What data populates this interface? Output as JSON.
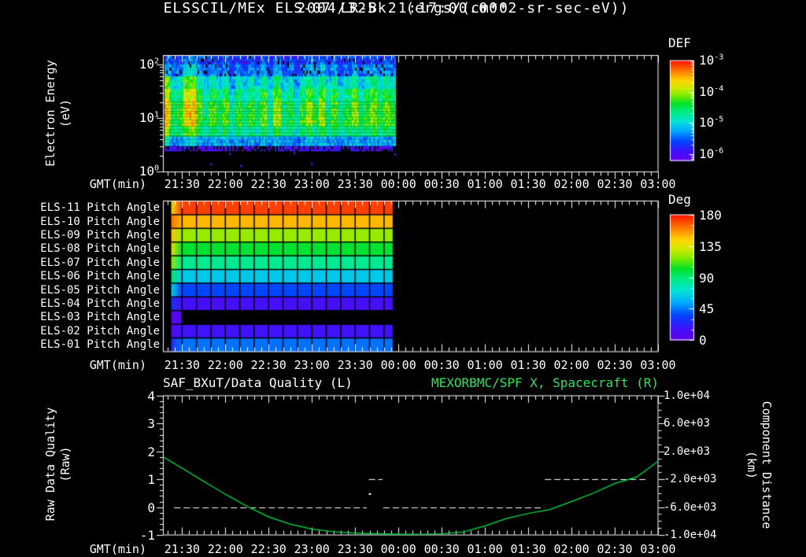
{
  "titles": {
    "line1": "2004/325 21:17:00.000",
    "line2": "ELSSCIL/MEx ELS-07 LR-Bk  (ergs/(cm**2-sr-sec-eV))"
  },
  "colors": {
    "bg": "#000000",
    "fg": "#ffffff",
    "green_text": "#2ee25a",
    "curve": "#00c840",
    "quality_line": "#ffffff"
  },
  "time_axis": {
    "label": "GMT(min)",
    "start_min": 17,
    "end_min": 360,
    "minor_step_min": 5,
    "major_ticks": [
      {
        "label": "21:30",
        "min": 30
      },
      {
        "label": "22:00",
        "min": 60
      },
      {
        "label": "22:30",
        "min": 90
      },
      {
        "label": "23:00",
        "min": 120
      },
      {
        "label": "23:30",
        "min": 150
      },
      {
        "label": "00:00",
        "min": 180
      },
      {
        "label": "00:30",
        "min": 210
      },
      {
        "label": "01:00",
        "min": 240
      },
      {
        "label": "01:30",
        "min": 270
      },
      {
        "label": "02:00",
        "min": 300
      },
      {
        "label": "02:30",
        "min": 330
      },
      {
        "label": "03:00",
        "min": 360
      }
    ]
  },
  "spectrogram_panel": {
    "ylabel_line1": "Electron Energy",
    "ylabel_line2": "(eV)",
    "y_tick_exps": [
      2,
      1,
      0
    ],
    "colorbar": {
      "title": "DEF",
      "tick_exps": [
        -3,
        -4,
        -5,
        -6
      ]
    }
  },
  "pitch_panel": {
    "colorbar": {
      "title": "Deg",
      "ticks": [
        180,
        135,
        90,
        45,
        0
      ]
    }
  },
  "quality_panel": {
    "title_left": "SAF_BXuT/Data Quality (L)",
    "title_right": "MEXORBMC/SPF X, Spacecraft (R)",
    "ylabel_left_line1": "Raw Data Quality",
    "ylabel_left_line2": "(Raw)",
    "ylabel_right_line1": "Component Distance",
    "ylabel_right_line2": "(km)",
    "left_ticks": [
      4,
      3,
      2,
      1,
      0,
      -1
    ],
    "right_ticks": [
      "1.0e+04",
      "6.0e+03",
      "2.0e+03",
      "-2.0e+03",
      "-6.0e+03",
      "-1.0e+04"
    ]
  },
  "chart_data": [
    {
      "type": "heatmap",
      "name": "electron-energy-spectrogram",
      "units": "log10 DEF ergs/(cm**2-sr-sec-eV)",
      "x_range_min": [
        17,
        178
      ],
      "n_cols": 36,
      "def_log10_range": [
        -6.2,
        -3.0
      ],
      "energy_rows": [
        {
          "e_lo": 100,
          "e_hi": 250,
          "base": -5.65,
          "w": 0.35
        },
        {
          "e_lo": 60,
          "e_hi": 100,
          "base": -5.45,
          "w": 0.55
        },
        {
          "e_lo": 35,
          "e_hi": 60,
          "base": -5.0,
          "w": 0.85
        },
        {
          "e_lo": 20,
          "e_hi": 35,
          "base": -4.7,
          "w": 1.0
        },
        {
          "e_lo": 12,
          "e_hi": 20,
          "base": -4.5,
          "w": 1.0
        },
        {
          "e_lo": 7,
          "e_hi": 12,
          "base": -4.45,
          "w": 0.9
        },
        {
          "e_lo": 4.5,
          "e_hi": 7,
          "base": -4.7,
          "w": 0.6
        },
        {
          "e_lo": 3,
          "e_hi": 4.5,
          "base": -5.3,
          "w": 0.35
        },
        {
          "e_lo": 2.4,
          "e_hi": 3,
          "base": -6.0,
          "w": 0.1,
          "sparse": true
        },
        {
          "e_lo": 1.8,
          "e_hi": 2.4,
          "base": null
        },
        {
          "e_lo": 1.0,
          "e_hi": 1.8,
          "base": null
        }
      ],
      "col_deltas": [
        0.5,
        0.0,
        0.15,
        0.8,
        0.95,
        0.3,
        -0.15,
        0.25,
        -0.05,
        0.3,
        -0.3,
        0.15,
        -0.2,
        0.15,
        -0.1,
        0.35,
        -0.2,
        0.5,
        -0.15,
        0.1,
        -0.35,
        0.15,
        0.45,
        0.05,
        0.5,
        -0.1,
        0.3,
        -0.2,
        0.1,
        0.4,
        -0.15,
        0.2,
        0.45,
        0.0,
        0.3,
        0.1
      ]
    },
    {
      "type": "heatmap",
      "name": "pitch-angles",
      "units": "degrees",
      "x_start_min": 22.5,
      "first_bin_end_min": 30,
      "x_end_min": 176,
      "grid_step_min": 10,
      "deg_range": [
        0,
        180
      ],
      "rows": [
        {
          "label": "ELS-11 Pitch Angle",
          "first_bin_deg": 140,
          "main_deg": 172
        },
        {
          "label": "ELS-10 Pitch Angle",
          "first_bin_deg": 163,
          "main_deg": 150
        },
        {
          "label": "ELS-09 Pitch Angle",
          "first_bin_deg": 148,
          "main_deg": 122
        },
        {
          "label": "ELS-08 Pitch Angle",
          "first_bin_deg": 138,
          "main_deg": 101
        },
        {
          "label": "ELS-07 Pitch Angle",
          "first_bin_deg": 120,
          "main_deg": 85
        },
        {
          "label": "ELS-06 Pitch Angle",
          "first_bin_deg": 92,
          "main_deg": 63
        },
        {
          "label": "ELS-05 Pitch Angle",
          "first_bin_deg": 66,
          "main_deg": 36
        },
        {
          "label": "ELS-04 Pitch Angle",
          "first_bin_deg": 30,
          "main_deg": 13
        },
        {
          "label": "ELS-03 Pitch Angle",
          "first_bin_deg": 6,
          "main_deg": null
        },
        {
          "label": "ELS-02 Pitch Angle",
          "first_bin_deg": 9,
          "main_deg": 16
        },
        {
          "label": "ELS-01 Pitch Angle",
          "first_bin_deg": 26,
          "main_deg": 44
        }
      ]
    },
    {
      "type": "line",
      "name": "quality-and-distance",
      "left_axis": {
        "range": [
          4,
          -1
        ],
        "minor_step": 0.2
      },
      "right_axis": {
        "range": [
          10000,
          -10000
        ],
        "minor_step": 1000,
        "major_step": 4000
      },
      "series": [
        {
          "name": "MEXORBMC/SPF X, Spacecraft (R)",
          "axis": "right",
          "style": "solid-green",
          "points": [
            [
              17,
              1190
            ],
            [
              30,
              -400
            ],
            [
              45,
              -2300
            ],
            [
              60,
              -4150
            ],
            [
              75,
              -5900
            ],
            [
              90,
              -7400
            ],
            [
              105,
              -8450
            ],
            [
              120,
              -9150
            ],
            [
              135,
              -9530
            ],
            [
              150,
              -9720
            ],
            [
              165,
              -9830
            ],
            [
              180,
              -9890
            ],
            [
              195,
              -9900
            ],
            [
              210,
              -9820
            ],
            [
              225,
              -9560
            ],
            [
              240,
              -8700
            ],
            [
              255,
              -7625
            ],
            [
              270,
              -6900
            ],
            [
              285,
              -6350
            ],
            [
              300,
              -5200
            ],
            [
              315,
              -4000
            ],
            [
              330,
              -2600
            ],
            [
              345,
              -1700
            ],
            [
              353,
              -500
            ],
            [
              360,
              600
            ]
          ]
        },
        {
          "name": "SAF_BXuT/Data Quality (L)",
          "axis": "left",
          "style": "dashed-white",
          "segments": [
            {
              "value": 0,
              "from_min": 24.5,
              "to_min": 158
            },
            {
              "value": 1,
              "from_min": 159.5,
              "to_min": 169
            },
            {
              "value": 0,
              "from_min": 169.5,
              "to_min": 281
            },
            {
              "value": 1,
              "from_min": 281.5,
              "to_min": 351.5
            }
          ],
          "isolated_point": {
            "min": 160,
            "value": 0.5
          }
        }
      ]
    }
  ]
}
